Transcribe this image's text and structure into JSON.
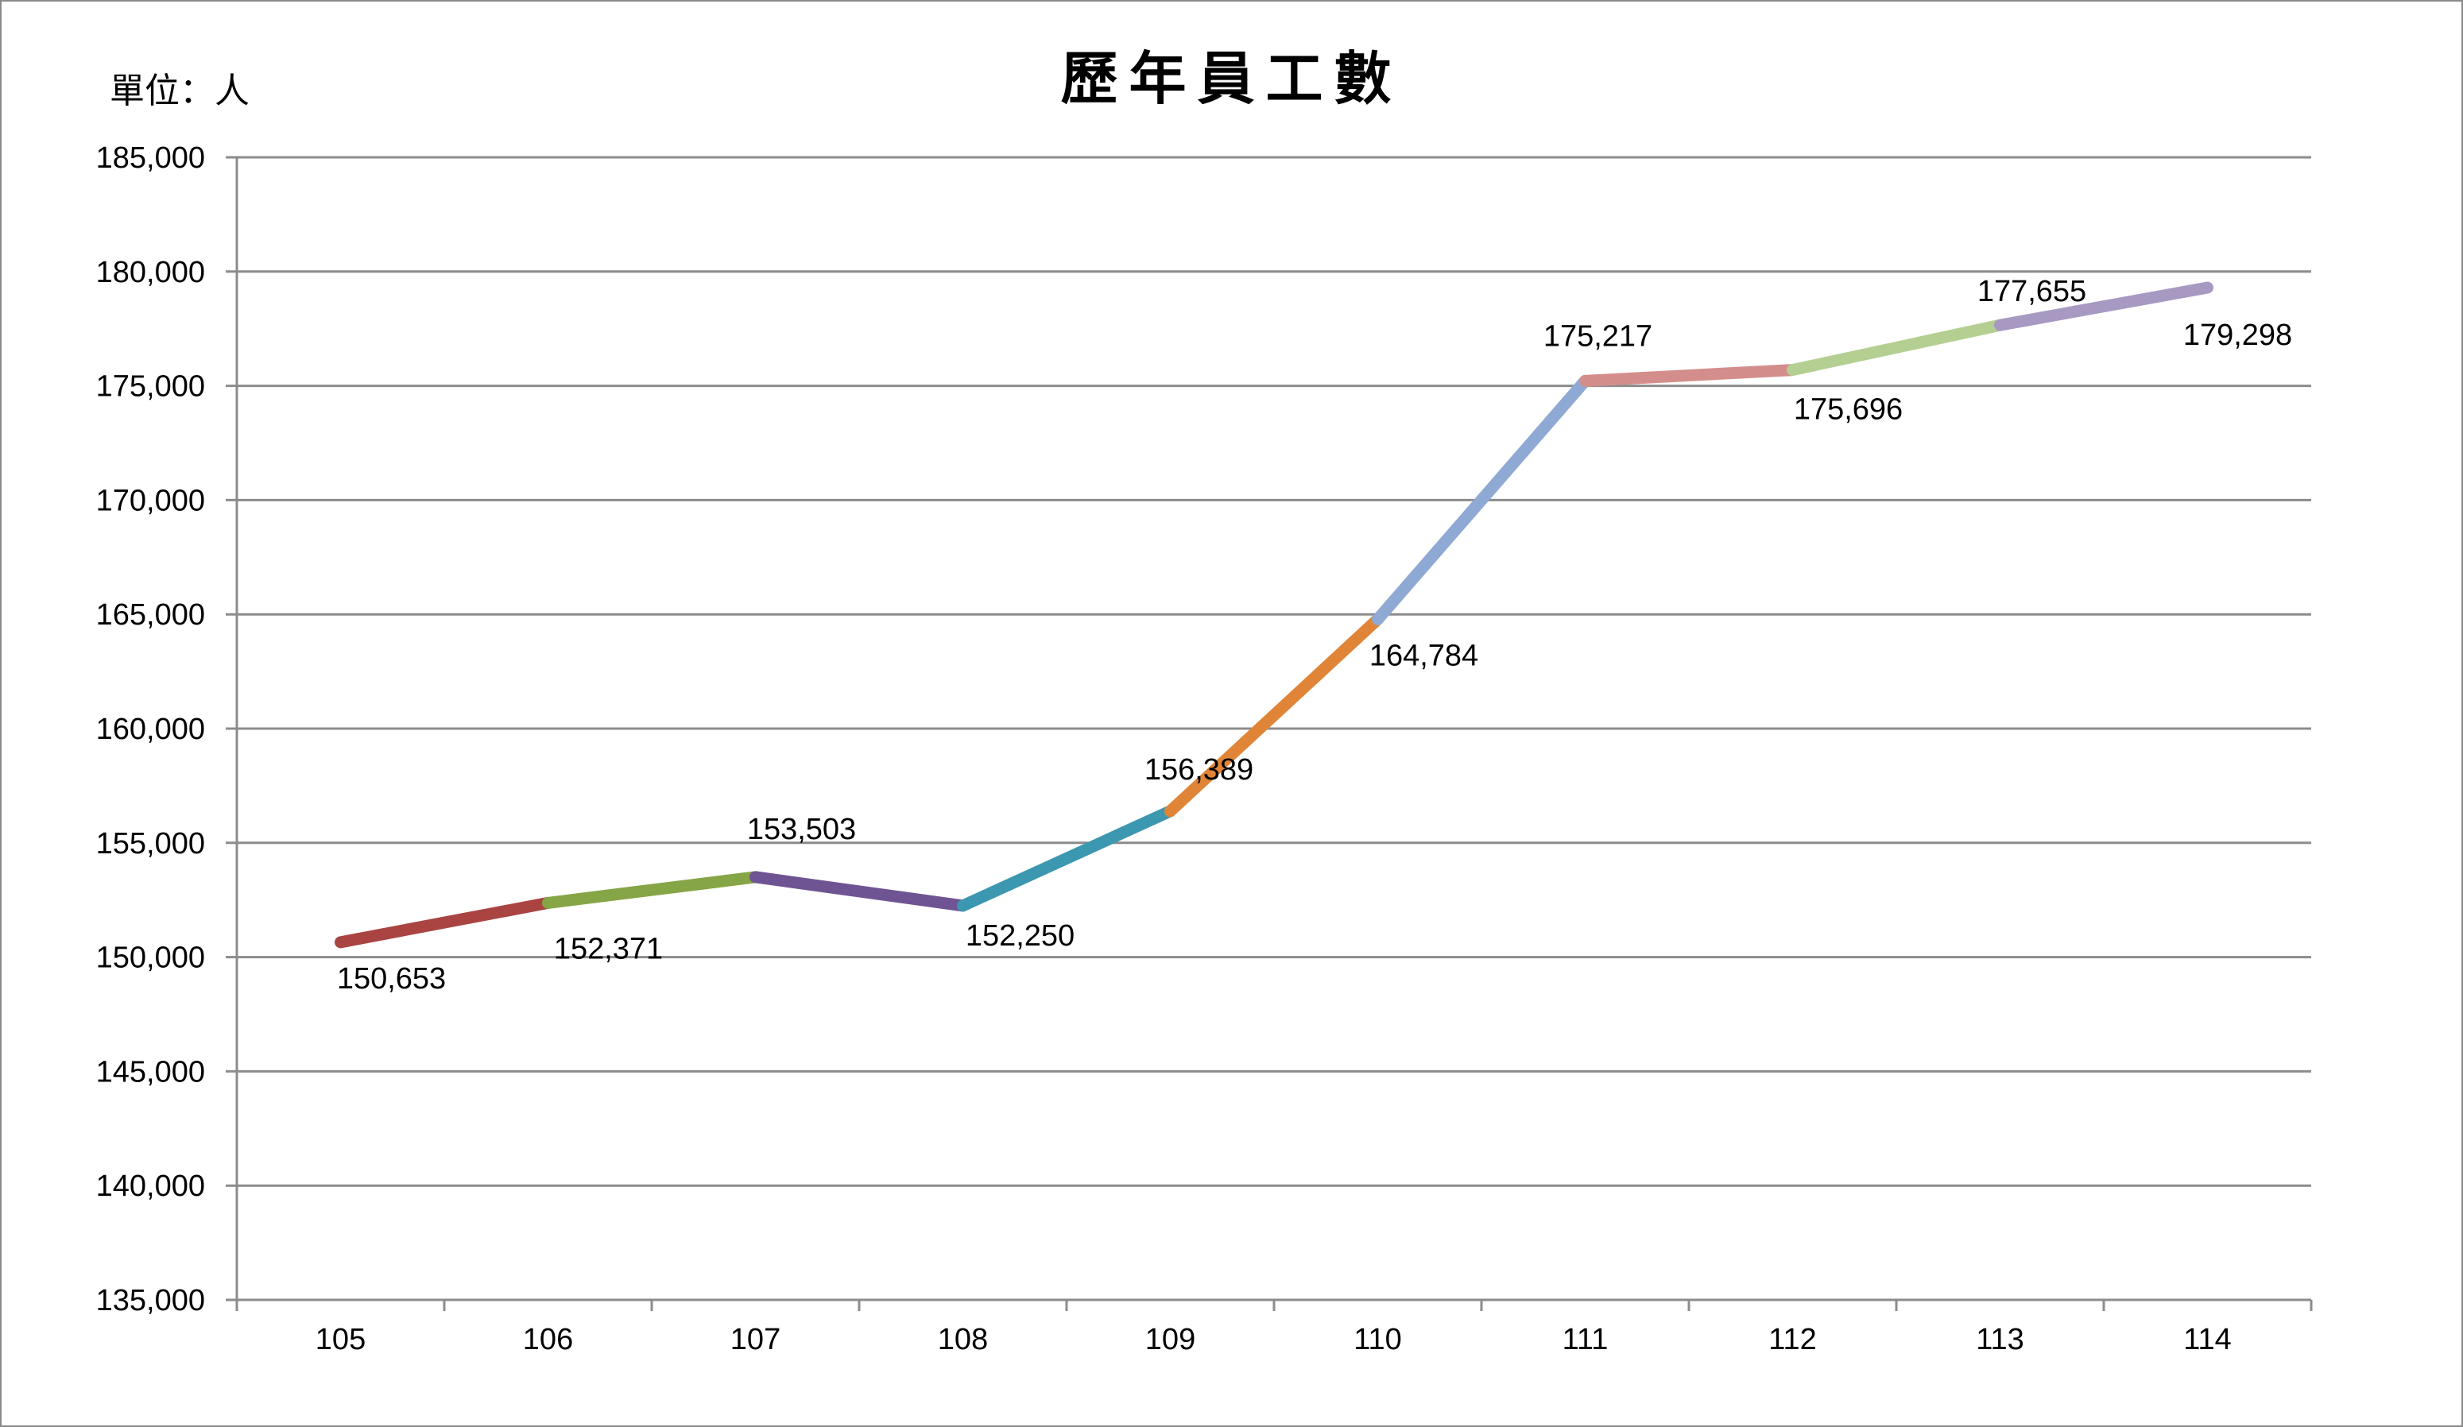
{
  "chart_data": {
    "type": "line",
    "title": "歷年員工數",
    "unit_label": "單位：人",
    "xlabel": "",
    "ylabel": "",
    "categories": [
      "105",
      "106",
      "107",
      "108",
      "109",
      "110",
      "111",
      "112",
      "113",
      "114"
    ],
    "series": [
      {
        "name": "員工數",
        "values": [
          150653,
          152371,
          153503,
          152250,
          156389,
          164784,
          175217,
          175696,
          177655,
          179298
        ],
        "value_labels": [
          "150,653",
          "152,371",
          "153,503",
          "152,250",
          "156,389",
          "164,784",
          "175,217",
          "175,696",
          "177,655",
          "179,298"
        ]
      }
    ],
    "segment_colors": [
      "#A94442",
      "#86A546",
      "#6F5493",
      "#3C97B0",
      "#E08537",
      "#8EA9D3",
      "#D38E8C",
      "#B5CF93",
      "#A799C2"
    ],
    "ylim": [
      135000,
      185000
    ],
    "y_ticks": [
      "135,000",
      "140,000",
      "145,000",
      "150,000",
      "155,000",
      "160,000",
      "165,000",
      "170,000",
      "175,000",
      "180,000",
      "185,000"
    ],
    "grid": true,
    "legend": "none"
  }
}
